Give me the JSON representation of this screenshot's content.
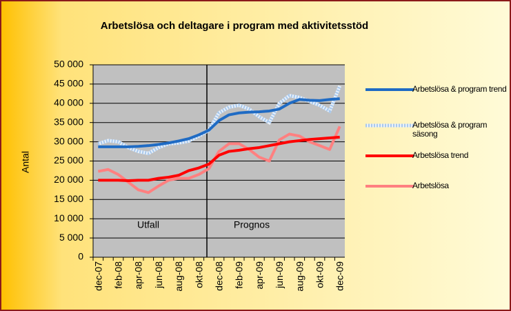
{
  "chart_data": {
    "type": "line",
    "title": "Arbetslösa och deltagare i program med aktivitetsstöd",
    "y_label": "Antal",
    "annotations": [
      "Utfall",
      "Prognos"
    ],
    "categories": [
      "dec-07",
      null,
      "feb-08",
      null,
      "apr-08",
      null,
      "jun-08",
      null,
      "aug-08",
      null,
      "okt-08",
      null,
      "dec-08",
      null,
      "feb-09",
      null,
      "apr-09",
      null,
      "jun-09",
      null,
      "aug-09",
      null,
      "okt-09",
      null,
      "dec-09"
    ],
    "series": [
      {
        "name": "Arbetslösa & program trend",
        "color": "#1f6bc4",
        "values": [
          28700,
          28700,
          28700,
          28700,
          28800,
          29000,
          29300,
          29700,
          30200,
          30800,
          31800,
          33000,
          35500,
          37000,
          37500,
          37700,
          37800,
          38000,
          38500,
          40000,
          41000,
          40800,
          40700,
          41000,
          41200
        ]
      },
      {
        "name": "Arbetslösa & program säsong",
        "color": "#a9c8ec",
        "values": [
          29500,
          30300,
          30000,
          28500,
          27500,
          27000,
          28500,
          29500,
          29700,
          30200,
          31500,
          33000,
          37500,
          39000,
          39500,
          38500,
          36500,
          35000,
          40000,
          42000,
          41500,
          40500,
          39500,
          38000,
          44500
        ]
      },
      {
        "name": "Arbetslösa trend",
        "color": "#ff0000",
        "values": [
          20000,
          20000,
          20000,
          19900,
          20000,
          20000,
          20500,
          20800,
          21300,
          22500,
          23200,
          24200,
          26500,
          27500,
          27800,
          28200,
          28500,
          29000,
          29500,
          30000,
          30300,
          30600,
          30800,
          31000,
          31200
        ]
      },
      {
        "name": "Arbetslösa",
        "color": "#ff8080",
        "values": [
          22300,
          22800,
          21500,
          19500,
          17500,
          16800,
          18500,
          20000,
          20500,
          20500,
          21500,
          23000,
          27500,
          29500,
          29500,
          28000,
          26000,
          25000,
          30500,
          32000,
          31500,
          30000,
          29000,
          28000,
          34000
        ]
      }
    ],
    "ylim": [
      0,
      50000
    ],
    "yticks": [
      0,
      {
        "value": 5000,
        "label": "5 000"
      },
      {
        "value": 10000,
        "label": "10 000"
      },
      {
        "value": 15000,
        "label": "15 000"
      },
      {
        "value": 20000,
        "label": "20 000"
      },
      {
        "value": 25000,
        "label": "25 000"
      },
      {
        "value": 30000,
        "label": "30 000"
      },
      {
        "value": 35000,
        "label": "35 000"
      },
      {
        "value": 40000,
        "label": "40 000"
      },
      {
        "value": 45000,
        "label": "45 000"
      },
      {
        "value": 50000,
        "label": "50 000"
      }
    ],
    "grid": true
  }
}
